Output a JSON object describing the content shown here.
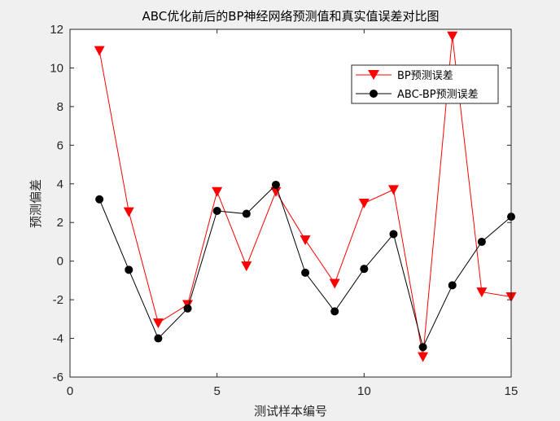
{
  "figure": {
    "background": "#f0f0f0"
  },
  "chart_data": {
    "type": "line",
    "title": "ABC优化前后的BP神经网络预测值和真实值误差对比图",
    "xlabel": "测试样本编号",
    "ylabel": "预测偏差",
    "xlim": [
      0,
      15
    ],
    "ylim": [
      -6,
      12
    ],
    "x_ticks": [
      0,
      5,
      10,
      15
    ],
    "y_ticks": [
      -6,
      -4,
      -2,
      0,
      2,
      4,
      6,
      8,
      10,
      12
    ],
    "x_tick_labels": [
      "0",
      "5",
      "10",
      "15"
    ],
    "y_tick_labels": [
      "-6",
      "-4",
      "-2",
      "0",
      "2",
      "4",
      "6",
      "8",
      "10",
      "12"
    ],
    "grid": false,
    "legend_position": "top-right",
    "x": [
      1,
      2,
      3,
      4,
      5,
      6,
      7,
      8,
      9,
      10,
      11,
      12,
      13,
      14,
      15
    ],
    "series": [
      {
        "name": "BP预测误差",
        "color": "#ff0000",
        "marker": "triangle-down",
        "values": [
          10.9,
          2.55,
          -3.2,
          -2.25,
          3.6,
          -0.25,
          3.6,
          1.1,
          -1.15,
          3.0,
          3.7,
          -4.95,
          11.65,
          -1.6,
          -1.85
        ]
      },
      {
        "name": "ABC-BP预测误差",
        "color": "#000000",
        "marker": "circle",
        "values": [
          3.2,
          -0.45,
          -4.0,
          -2.45,
          2.6,
          2.45,
          3.95,
          -0.6,
          -2.6,
          -0.4,
          1.4,
          -4.45,
          -1.25,
          1.0,
          2.3
        ]
      }
    ]
  }
}
